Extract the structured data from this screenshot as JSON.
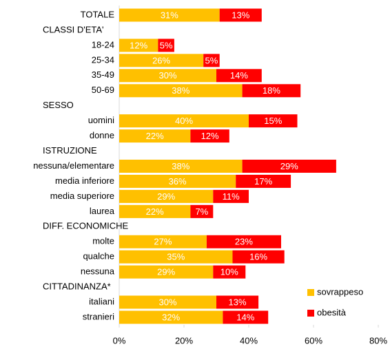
{
  "chart_data": {
    "type": "stacked-barh",
    "categories": [
      "TOTALE",
      "CLASSI D'ETA'",
      "18-24",
      "25-34",
      "35-49",
      "50-69",
      "SESSO",
      "uomini",
      "donne",
      "ISTRUZIONE",
      "nessuna/elementare",
      "media inferiore",
      "media superiore",
      "laurea",
      "DIFF. ECONOMICHE",
      "molte",
      "qualche",
      "nessuna",
      "CITTADINANZA*",
      "italiani",
      "stranieri"
    ],
    "series": [
      {
        "name": "sovrappeso",
        "color": "#FFC000",
        "values": [
          31,
          null,
          12,
          26,
          30,
          38,
          null,
          40,
          22,
          null,
          38,
          36,
          29,
          22,
          null,
          27,
          35,
          29,
          null,
          30,
          32
        ],
        "value_labels": [
          "31%",
          null,
          "12%",
          "26%",
          "30%",
          "38%",
          null,
          "40%",
          "22%",
          null,
          "38%",
          "36%",
          "29%",
          "22%",
          null,
          "27%",
          "35%",
          "29%",
          null,
          "30%",
          "32%"
        ]
      },
      {
        "name": "obesità",
        "color": "#FF0000",
        "values": [
          13,
          null,
          5,
          5,
          14,
          18,
          null,
          15,
          12,
          null,
          29,
          17,
          11,
          7,
          null,
          23,
          16,
          10,
          null,
          13,
          14
        ],
        "value_labels": [
          "13%",
          null,
          "5%",
          "5%",
          "14%",
          "18%",
          null,
          "15%",
          "12%",
          null,
          "29%",
          "17%",
          "11%",
          "7%",
          null,
          "23%",
          "16%",
          "10%",
          null,
          "13%",
          "14%"
        ]
      }
    ],
    "xlim": [
      0,
      80
    ],
    "xticks": [
      {
        "value": 0,
        "label": "0%"
      },
      {
        "value": 20,
        "label": "20%"
      },
      {
        "value": 40,
        "label": "40%"
      },
      {
        "value": 60,
        "label": "60%"
      },
      {
        "value": 80,
        "label": "80%"
      }
    ],
    "legend": "bottom-right"
  }
}
